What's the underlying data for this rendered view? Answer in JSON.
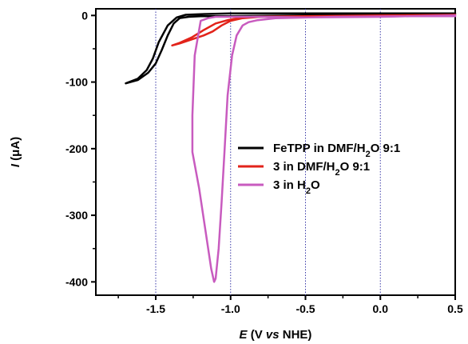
{
  "chart_data": {
    "type": "line",
    "xlabel_prefix": "E",
    "xlabel_suffix": " (V ",
    "xlabel_vs": "vs",
    "xlabel_ref": " NHE)",
    "ylabel_prefix": "I",
    "ylabel_suffix": " (μA)",
    "xlim": [
      -1.9,
      0.5
    ],
    "ylim": [
      -420,
      10
    ],
    "xticks": [
      -1.5,
      -1.0,
      -0.5,
      0.0,
      0.5
    ],
    "xtick_labels": [
      "-1.5",
      "-1.0",
      "-0.5",
      "0.0",
      "0.5"
    ],
    "yticks": [
      0,
      -100,
      -200,
      -300,
      -400
    ],
    "ytick_labels": [
      "0",
      "-100",
      "-200",
      "-300",
      "-400"
    ],
    "vertical_gridlines_at": [
      -1.5,
      -1.0,
      -0.5,
      0.0
    ],
    "legend_position": "center-right",
    "series": [
      {
        "name": "FeTPP in DMF/H₂O 9:1",
        "legend_main": "FeTPP in DMF/H",
        "legend_sub": "2",
        "legend_tail": "O 9:1",
        "color": "#000000",
        "points": [
          [
            0.5,
            3
          ],
          [
            0.0,
            3
          ],
          [
            -0.5,
            3
          ],
          [
            -1.0,
            3
          ],
          [
            -1.2,
            2
          ],
          [
            -1.3,
            1
          ],
          [
            -1.36,
            -3
          ],
          [
            -1.42,
            -15
          ],
          [
            -1.48,
            -40
          ],
          [
            -1.52,
            -65
          ],
          [
            -1.56,
            -82
          ],
          [
            -1.62,
            -95
          ],
          [
            -1.7,
            -102
          ],
          [
            -1.62,
            -97
          ],
          [
            -1.55,
            -86
          ],
          [
            -1.5,
            -72
          ],
          [
            -1.46,
            -52
          ],
          [
            -1.42,
            -30
          ],
          [
            -1.38,
            -12
          ],
          [
            -1.34,
            -4
          ],
          [
            -1.28,
            -2
          ],
          [
            -1.2,
            -1
          ],
          [
            -1.0,
            -1
          ],
          [
            -0.5,
            0
          ],
          [
            0.0,
            1
          ],
          [
            0.5,
            3
          ]
        ]
      },
      {
        "name": "3 in DMF/H₂O 9:1",
        "legend_main": "3 in DMF/H",
        "legend_sub": "2",
        "legend_tail": "O 9:1",
        "color": "#e2231a",
        "points": [
          [
            0.5,
            1
          ],
          [
            0.0,
            0
          ],
          [
            -0.5,
            -1
          ],
          [
            -0.8,
            -2
          ],
          [
            -0.92,
            -4
          ],
          [
            -1.0,
            -8
          ],
          [
            -1.06,
            -15
          ],
          [
            -1.12,
            -24
          ],
          [
            -1.18,
            -30
          ],
          [
            -1.26,
            -36
          ],
          [
            -1.34,
            -42
          ],
          [
            -1.39,
            -45
          ],
          [
            -1.34,
            -41
          ],
          [
            -1.26,
            -33
          ],
          [
            -1.18,
            -22
          ],
          [
            -1.1,
            -12
          ],
          [
            -1.02,
            -7
          ],
          [
            -0.95,
            -4
          ],
          [
            -0.85,
            -2
          ],
          [
            -0.5,
            -1
          ],
          [
            0.0,
            0
          ],
          [
            0.5,
            1
          ]
        ]
      },
      {
        "name": "3 in H₂O",
        "legend_main": "3 in H",
        "legend_sub": "2",
        "legend_tail": "O",
        "color": "#c85bbf",
        "points": [
          [
            0.5,
            -1
          ],
          [
            0.2,
            -1
          ],
          [
            -0.3,
            -2
          ],
          [
            -0.7,
            -4
          ],
          [
            -0.82,
            -7
          ],
          [
            -0.88,
            -10
          ],
          [
            -0.92,
            -15
          ],
          [
            -0.96,
            -30
          ],
          [
            -0.99,
            -60
          ],
          [
            -1.02,
            -120
          ],
          [
            -1.04,
            -200
          ],
          [
            -1.06,
            -280
          ],
          [
            -1.08,
            -350
          ],
          [
            -1.1,
            -395
          ],
          [
            -1.11,
            -400
          ],
          [
            -1.13,
            -380
          ],
          [
            -1.17,
            -320
          ],
          [
            -1.21,
            -260
          ],
          [
            -1.255,
            -205
          ],
          [
            -1.255,
            -150
          ],
          [
            -1.24,
            -60
          ],
          [
            -1.2,
            -8
          ],
          [
            -1.15,
            -4
          ],
          [
            -1.1,
            -2
          ],
          [
            -0.8,
            -2
          ],
          [
            -0.5,
            -3
          ],
          [
            0.0,
            -2
          ],
          [
            0.5,
            0
          ]
        ]
      }
    ]
  }
}
